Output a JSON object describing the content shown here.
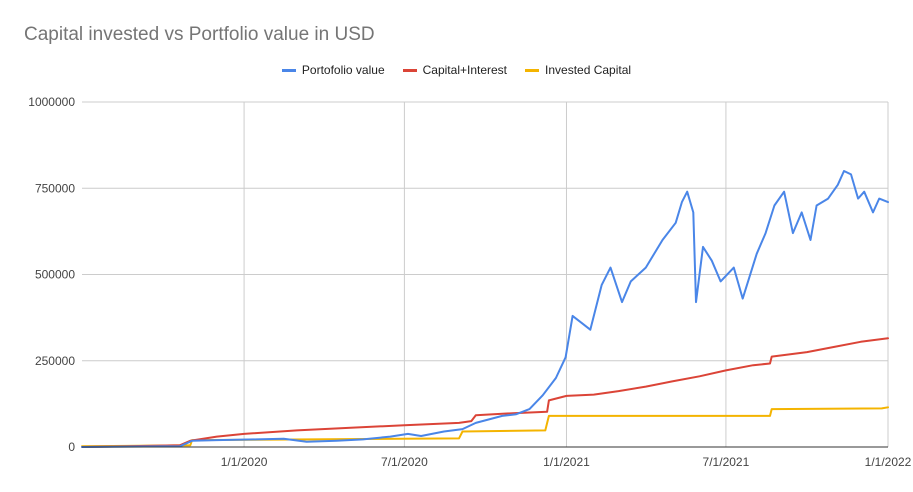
{
  "chart_data": {
    "type": "line",
    "title": "Capital invested vs Portfolio value in USD",
    "xlabel": "",
    "ylabel": "",
    "x_range": [
      "2019-07-01",
      "2022-01-01"
    ],
    "ylim": [
      0,
      1000000
    ],
    "y_ticks": [
      {
        "value": 0,
        "label": "0"
      },
      {
        "value": 250000,
        "label": "250000"
      },
      {
        "value": 500000,
        "label": "500000"
      },
      {
        "value": 750000,
        "label": "750000"
      },
      {
        "value": 1000000,
        "label": "1000000"
      }
    ],
    "x_ticks": [
      {
        "date": "2020-01-01",
        "label": "1/1/2020"
      },
      {
        "date": "2020-07-01",
        "label": "7/1/2020"
      },
      {
        "date": "2021-01-01",
        "label": "1/1/2021"
      },
      {
        "date": "2021-07-01",
        "label": "7/1/2021"
      },
      {
        "date": "2022-01-01",
        "label": "1/1/2022"
      }
    ],
    "grid": true,
    "legend_position": "top",
    "series": [
      {
        "name": "Portofolio value",
        "color": "#4a86e8",
        "points": [
          [
            "2019-07-01",
            0
          ],
          [
            "2019-10-20",
            2000
          ],
          [
            "2019-11-03",
            18000
          ],
          [
            "2019-12-01",
            20000
          ],
          [
            "2020-01-15",
            22000
          ],
          [
            "2020-02-15",
            24000
          ],
          [
            "2020-03-12",
            15000
          ],
          [
            "2020-04-15",
            18000
          ],
          [
            "2020-05-15",
            22000
          ],
          [
            "2020-06-15",
            30000
          ],
          [
            "2020-07-05",
            38000
          ],
          [
            "2020-07-20",
            32000
          ],
          [
            "2020-08-15",
            45000
          ],
          [
            "2020-09-05",
            52000
          ],
          [
            "2020-09-20",
            70000
          ],
          [
            "2020-10-05",
            80000
          ],
          [
            "2020-10-20",
            90000
          ],
          [
            "2020-11-05",
            95000
          ],
          [
            "2020-11-20",
            110000
          ],
          [
            "2020-12-05",
            150000
          ],
          [
            "2020-12-20",
            200000
          ],
          [
            "2020-12-31",
            260000
          ],
          [
            "2021-01-08",
            380000
          ],
          [
            "2021-01-18",
            360000
          ],
          [
            "2021-01-28",
            340000
          ],
          [
            "2021-02-10",
            470000
          ],
          [
            "2021-02-20",
            520000
          ],
          [
            "2021-03-05",
            420000
          ],
          [
            "2021-03-15",
            480000
          ],
          [
            "2021-04-01",
            520000
          ],
          [
            "2021-04-20",
            600000
          ],
          [
            "2021-05-05",
            650000
          ],
          [
            "2021-05-12",
            710000
          ],
          [
            "2021-05-18",
            740000
          ],
          [
            "2021-05-25",
            680000
          ],
          [
            "2021-05-28",
            420000
          ],
          [
            "2021-06-05",
            580000
          ],
          [
            "2021-06-15",
            540000
          ],
          [
            "2021-06-25",
            480000
          ],
          [
            "2021-07-10",
            520000
          ],
          [
            "2021-07-20",
            430000
          ],
          [
            "2021-08-05",
            560000
          ],
          [
            "2021-08-15",
            620000
          ],
          [
            "2021-08-25",
            700000
          ],
          [
            "2021-09-05",
            740000
          ],
          [
            "2021-09-15",
            620000
          ],
          [
            "2021-09-25",
            680000
          ],
          [
            "2021-10-05",
            600000
          ],
          [
            "2021-10-12",
            700000
          ],
          [
            "2021-10-25",
            720000
          ],
          [
            "2021-11-05",
            760000
          ],
          [
            "2021-11-12",
            800000
          ],
          [
            "2021-11-20",
            790000
          ],
          [
            "2021-11-28",
            720000
          ],
          [
            "2021-12-05",
            740000
          ],
          [
            "2021-12-15",
            680000
          ],
          [
            "2021-12-22",
            720000
          ],
          [
            "2022-01-01",
            710000
          ]
        ]
      },
      {
        "name": "Capital+Interest",
        "color": "#db4437",
        "points": [
          [
            "2019-07-01",
            0
          ],
          [
            "2019-10-20",
            5000
          ],
          [
            "2019-11-01",
            18000
          ],
          [
            "2019-12-01",
            30000
          ],
          [
            "2020-01-01",
            38000
          ],
          [
            "2020-03-01",
            48000
          ],
          [
            "2020-05-01",
            56000
          ],
          [
            "2020-07-01",
            63000
          ],
          [
            "2020-09-01",
            70000
          ],
          [
            "2020-09-15",
            75000
          ],
          [
            "2020-09-20",
            92000
          ],
          [
            "2020-11-01",
            98000
          ],
          [
            "2020-12-10",
            102000
          ],
          [
            "2020-12-12",
            135000
          ],
          [
            "2021-01-01",
            148000
          ],
          [
            "2021-02-01",
            152000
          ],
          [
            "2021-03-01",
            162000
          ],
          [
            "2021-04-01",
            175000
          ],
          [
            "2021-05-01",
            190000
          ],
          [
            "2021-06-01",
            205000
          ],
          [
            "2021-07-01",
            222000
          ],
          [
            "2021-08-01",
            237000
          ],
          [
            "2021-08-20",
            242000
          ],
          [
            "2021-08-22",
            262000
          ],
          [
            "2021-10-01",
            275000
          ],
          [
            "2021-11-01",
            290000
          ],
          [
            "2021-12-01",
            305000
          ],
          [
            "2022-01-01",
            315000
          ]
        ]
      },
      {
        "name": "Invested Capital",
        "color": "#f4b400",
        "points": [
          [
            "2019-07-01",
            2000
          ],
          [
            "2019-11-01",
            5000
          ],
          [
            "2019-11-03",
            20000
          ],
          [
            "2020-09-01",
            25000
          ],
          [
            "2020-09-05",
            45000
          ],
          [
            "2020-12-08",
            48000
          ],
          [
            "2020-12-12",
            90000
          ],
          [
            "2021-08-20",
            90000
          ],
          [
            "2021-08-22",
            110000
          ],
          [
            "2021-12-25",
            112000
          ],
          [
            "2022-01-01",
            115000
          ]
        ]
      }
    ]
  }
}
